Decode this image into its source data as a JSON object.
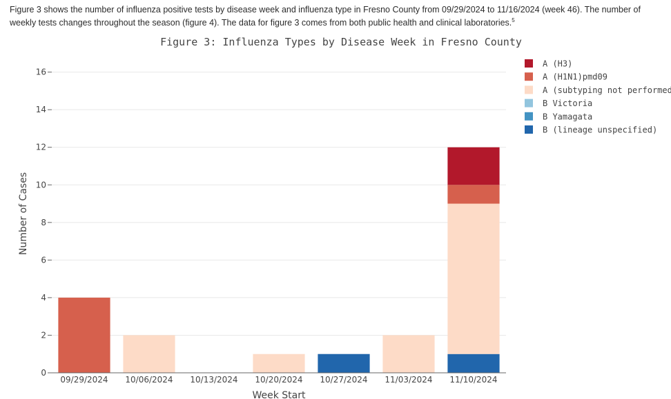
{
  "intro": {
    "text": "Figure 3 shows the number of influenza positive tests by disease week and influenza type in Fresno County from 09/29/2024 to 11/16/2024 (week 46). The number of weekly tests changes throughout the season (figure 4). The data for figure 3 comes from both public health and clinical laboratories.",
    "footnote": "5"
  },
  "chart_data": {
    "type": "bar",
    "stacked": true,
    "title": "Figure 3: Influenza Types by Disease Week in Fresno County",
    "xlabel": "Week Start",
    "ylabel": "Number of Cases",
    "ylim": [
      0,
      16.5
    ],
    "yticks": [
      0,
      2,
      4,
      6,
      8,
      10,
      12,
      14,
      16
    ],
    "grid": true,
    "legend_position": "right",
    "categories": [
      "09/29/2024",
      "10/06/2024",
      "10/13/2024",
      "10/20/2024",
      "10/27/2024",
      "11/03/2024",
      "11/10/2024"
    ],
    "series": [
      {
        "name": "B (lineage unspecified)",
        "color": "#2166ac",
        "values": [
          0,
          0,
          0,
          0,
          1,
          0,
          1
        ]
      },
      {
        "name": "B Yamagata",
        "color": "#4393c3",
        "values": [
          0,
          0,
          0,
          0,
          0,
          0,
          0
        ]
      },
      {
        "name": "B Victoria",
        "color": "#92c5de",
        "values": [
          0,
          0,
          0,
          0,
          0,
          0,
          0
        ]
      },
      {
        "name": "A (subtyping not performed)",
        "color": "#fddbc7",
        "values": [
          0,
          2,
          0,
          1,
          0,
          2,
          8
        ]
      },
      {
        "name": "A (H1N1)pmd09",
        "color": "#d6604d",
        "values": [
          4,
          0,
          0,
          0,
          0,
          0,
          1
        ]
      },
      {
        "name": "A (H3)",
        "color": "#b2182b",
        "values": [
          0,
          0,
          0,
          0,
          0,
          0,
          2
        ]
      }
    ],
    "legend_order": [
      "A (H3)",
      "A (H1N1)pmd09",
      "A (subtyping not performed)",
      "B Victoria",
      "B Yamagata",
      "B (lineage unspecified)"
    ]
  }
}
